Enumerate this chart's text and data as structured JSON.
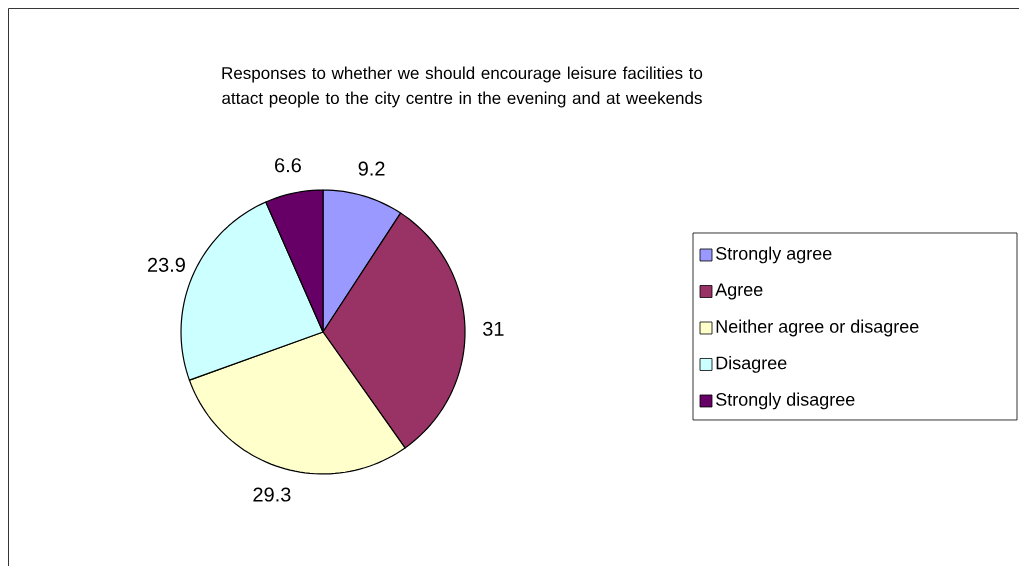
{
  "chart_data": {
    "type": "pie",
    "title": "Responses to whether we should encourage leisure facilities to attact people to the city centre in the evening and at weekends",
    "categories": [
      "Strongly agree",
      "Agree",
      "Neither agree or disagree",
      "Disagree",
      "Strongly disagree"
    ],
    "values": [
      9.2,
      31,
      29.3,
      23.9,
      6.6
    ],
    "colors": [
      "#9999ff",
      "#993366",
      "#ffffcc",
      "#ccffff",
      "#660066"
    ],
    "data_labels": true,
    "legend": "right"
  }
}
